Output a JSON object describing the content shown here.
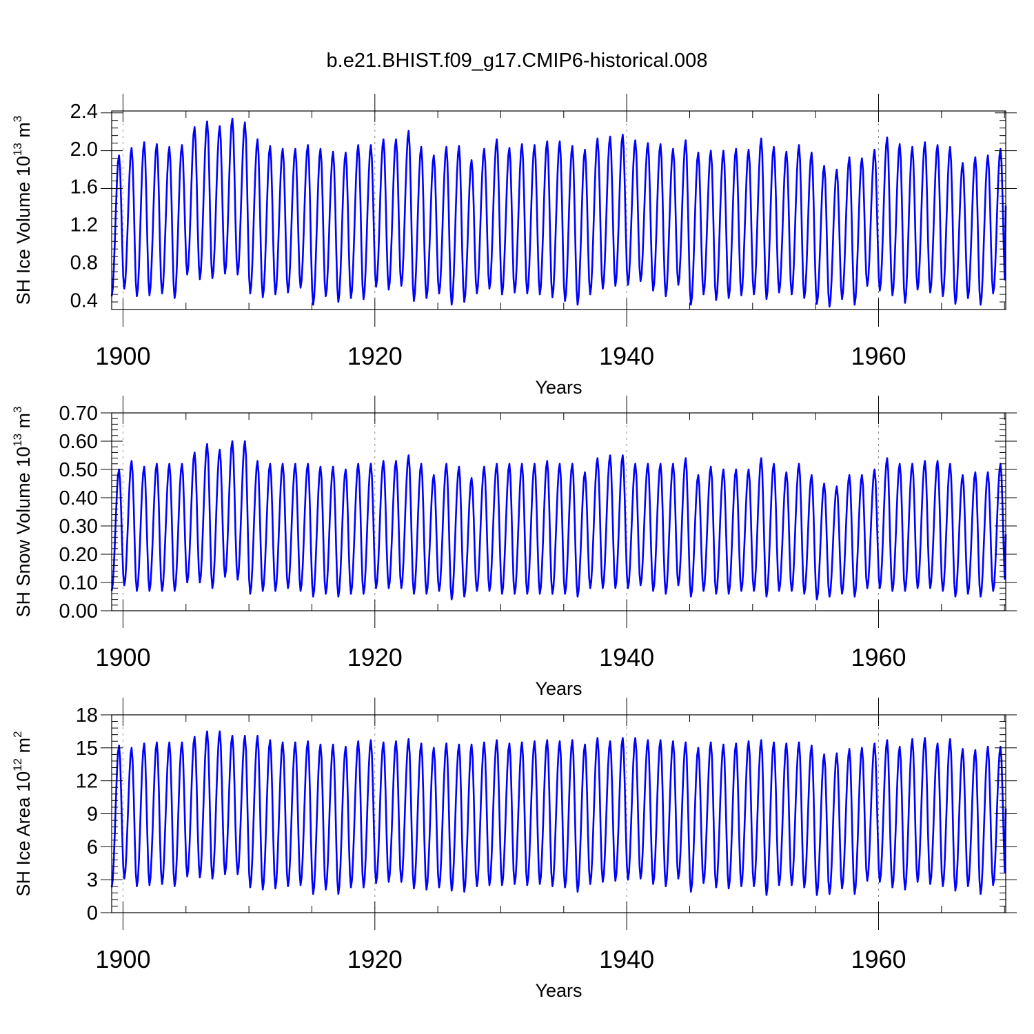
{
  "figure_title": "b.e21.BHIST.f09_g17.CMIP6-historical.008",
  "line_color": "#0000ff",
  "chart_data": [
    {
      "type": "line",
      "id": "ice-volume",
      "title": "",
      "xlabel": "Years",
      "ylabel_main": "SH Ice Volume 10",
      "ylabel_exp": "13",
      "ylabel_unit": " m",
      "ylabel_unit_exp": "3",
      "xlim": [
        1899.1,
        1970.1
      ],
      "ylim": [
        0.3,
        2.4
      ],
      "x_ticks": [
        1900,
        1920,
        1940,
        1960
      ],
      "x_tick_labels": [
        "1900",
        "1920",
        "1940",
        "1960"
      ],
      "y_ticks": [
        0.4,
        0.8,
        1.2,
        1.6,
        2.0,
        2.4
      ],
      "y_tick_labels": [
        "0.4",
        "0.8",
        "1.2",
        "1.6",
        "2.0",
        "2.4"
      ],
      "series": [
        {
          "name": "SH Ice Volume",
          "start_year": 1899.1,
          "annual_max": [
            1.93,
            2.01,
            2.07,
            2.05,
            2.02,
            2.04,
            2.23,
            2.29,
            2.24,
            2.32,
            2.28,
            2.1,
            2.03,
            2.0,
            2.0,
            2.04,
            2.0,
            1.97,
            1.96,
            2.04,
            2.04,
            2.1,
            2.1,
            2.19,
            2.02,
            1.93,
            2.02,
            2.03,
            1.88,
            2.0,
            2.1,
            2.01,
            2.05,
            2.04,
            2.08,
            2.08,
            2.03,
            1.99,
            2.11,
            2.13,
            2.15,
            2.09,
            2.06,
            2.05,
            2.0,
            2.09,
            1.96,
            1.98,
            1.98,
            2.0,
            1.99,
            2.11,
            2.02,
            1.97,
            2.04,
            1.96,
            1.82,
            1.78,
            1.91,
            1.9,
            1.99,
            2.12,
            2.05,
            2.02,
            2.07,
            2.04,
            2.02,
            1.85,
            1.91,
            1.93,
            2.0
          ],
          "annual_min": [
            0.44,
            0.52,
            0.44,
            0.45,
            0.47,
            0.42,
            0.67,
            0.62,
            0.63,
            0.68,
            0.67,
            0.47,
            0.43,
            0.46,
            0.48,
            0.53,
            0.35,
            0.44,
            0.38,
            0.42,
            0.41,
            0.54,
            0.51,
            0.55,
            0.39,
            0.42,
            0.47,
            0.35,
            0.38,
            0.47,
            0.52,
            0.46,
            0.48,
            0.47,
            0.46,
            0.43,
            0.39,
            0.35,
            0.46,
            0.52,
            0.55,
            0.56,
            0.6,
            0.5,
            0.44,
            0.56,
            0.35,
            0.46,
            0.4,
            0.42,
            0.45,
            0.46,
            0.41,
            0.48,
            0.46,
            0.42,
            0.36,
            0.33,
            0.41,
            0.35,
            0.55,
            0.5,
            0.45,
            0.37,
            0.51,
            0.48,
            0.44,
            0.36,
            0.42,
            0.35,
            0.47
          ],
          "end_value": 1.4
        }
      ]
    },
    {
      "type": "line",
      "id": "snow-volume",
      "title": "",
      "xlabel": "Years",
      "ylabel_main": "SH Snow Volume 10",
      "ylabel_exp": "13",
      "ylabel_unit": " m",
      "ylabel_unit_exp": "3",
      "xlim": [
        1899.1,
        1970.1
      ],
      "ylim": [
        0.0,
        0.7
      ],
      "x_ticks": [
        1900,
        1920,
        1940,
        1960
      ],
      "x_tick_labels": [
        "1900",
        "1920",
        "1940",
        "1960"
      ],
      "y_ticks": [
        0.0,
        0.1,
        0.2,
        0.3,
        0.4,
        0.5,
        0.6,
        0.7
      ],
      "y_tick_labels": [
        "0.00",
        "0.10",
        "0.20",
        "0.30",
        "0.40",
        "0.50",
        "0.60",
        "0.70"
      ],
      "series": [
        {
          "name": "SH Snow Volume",
          "start_year": 1899.1,
          "annual_max": [
            0.5,
            0.53,
            0.51,
            0.52,
            0.52,
            0.52,
            0.56,
            0.59,
            0.57,
            0.6,
            0.6,
            0.53,
            0.52,
            0.52,
            0.52,
            0.52,
            0.51,
            0.51,
            0.5,
            0.52,
            0.52,
            0.53,
            0.53,
            0.55,
            0.52,
            0.48,
            0.52,
            0.51,
            0.47,
            0.51,
            0.52,
            0.52,
            0.52,
            0.52,
            0.53,
            0.52,
            0.52,
            0.49,
            0.54,
            0.55,
            0.55,
            0.52,
            0.52,
            0.52,
            0.52,
            0.54,
            0.48,
            0.51,
            0.5,
            0.5,
            0.5,
            0.54,
            0.52,
            0.49,
            0.52,
            0.48,
            0.45,
            0.44,
            0.48,
            0.48,
            0.5,
            0.54,
            0.52,
            0.52,
            0.53,
            0.53,
            0.52,
            0.48,
            0.49,
            0.49,
            0.52
          ],
          "annual_min": [
            0.07,
            0.09,
            0.07,
            0.07,
            0.07,
            0.07,
            0.1,
            0.1,
            0.08,
            0.12,
            0.11,
            0.06,
            0.07,
            0.07,
            0.08,
            0.07,
            0.05,
            0.06,
            0.05,
            0.06,
            0.06,
            0.08,
            0.08,
            0.08,
            0.06,
            0.06,
            0.07,
            0.04,
            0.05,
            0.07,
            0.07,
            0.06,
            0.06,
            0.06,
            0.06,
            0.06,
            0.06,
            0.05,
            0.08,
            0.08,
            0.08,
            0.08,
            0.09,
            0.07,
            0.06,
            0.09,
            0.05,
            0.07,
            0.06,
            0.06,
            0.07,
            0.07,
            0.05,
            0.07,
            0.07,
            0.06,
            0.04,
            0.05,
            0.06,
            0.05,
            0.08,
            0.08,
            0.07,
            0.07,
            0.08,
            0.08,
            0.07,
            0.05,
            0.06,
            0.05,
            0.07
          ],
          "end_value": 0.27
        }
      ]
    },
    {
      "type": "line",
      "id": "ice-area",
      "title": "",
      "xlabel": "Years",
      "ylabel_main": "SH Ice Area 10",
      "ylabel_exp": "12",
      "ylabel_unit": " m",
      "ylabel_unit_exp": "2",
      "xlim": [
        1899.1,
        1970.1
      ],
      "ylim": [
        0,
        18
      ],
      "x_ticks": [
        1900,
        1920,
        1940,
        1960
      ],
      "x_tick_labels": [
        "1900",
        "1920",
        "1940",
        "1960"
      ],
      "y_ticks": [
        0,
        3,
        6,
        9,
        12,
        15,
        18
      ],
      "y_tick_labels": [
        "0",
        "3",
        "6",
        "9",
        "12",
        "15",
        "18"
      ],
      "series": [
        {
          "name": "SH Ice Area",
          "start_year": 1899.1,
          "annual_max": [
            15.2,
            15.0,
            15.4,
            15.5,
            15.5,
            15.5,
            16.0,
            16.5,
            16.5,
            16.1,
            16.1,
            16.1,
            15.7,
            15.5,
            15.5,
            15.6,
            15.3,
            15.3,
            15.1,
            15.6,
            15.7,
            15.5,
            15.6,
            15.8,
            15.4,
            15.0,
            15.4,
            15.3,
            15.3,
            15.5,
            15.7,
            15.4,
            15.5,
            15.6,
            15.7,
            15.6,
            15.7,
            15.3,
            15.9,
            15.6,
            15.9,
            15.9,
            15.7,
            15.7,
            15.6,
            15.5,
            15.0,
            15.5,
            15.3,
            15.4,
            15.6,
            15.7,
            15.5,
            15.4,
            15.5,
            15.2,
            14.4,
            14.5,
            14.9,
            15.0,
            15.4,
            15.7,
            15.1,
            15.8,
            15.9,
            15.4,
            15.8,
            14.9,
            14.8,
            15.1,
            15.1
          ],
          "annual_min": [
            2.3,
            3.1,
            2.4,
            2.5,
            2.6,
            2.4,
            3.3,
            3.2,
            3.1,
            3.5,
            3.5,
            2.3,
            2.1,
            2.2,
            2.4,
            2.5,
            1.7,
            2.1,
            1.7,
            2.3,
            2.3,
            2.7,
            2.8,
            2.8,
            2.2,
            2.1,
            2.3,
            2.0,
            1.9,
            2.4,
            2.5,
            2.5,
            2.6,
            2.5,
            2.6,
            2.4,
            2.3,
            1.9,
            2.6,
            2.8,
            2.9,
            3.0,
            3.1,
            2.6,
            2.4,
            3.1,
            1.9,
            2.7,
            2.3,
            2.2,
            2.4,
            2.4,
            1.6,
            2.5,
            2.5,
            2.3,
            1.6,
            1.7,
            2.2,
            1.7,
            2.9,
            2.8,
            2.3,
            2.1,
            2.8,
            2.6,
            2.4,
            2.0,
            2.4,
            1.7,
            2.5
          ],
          "end_value": 9.5
        }
      ]
    }
  ]
}
